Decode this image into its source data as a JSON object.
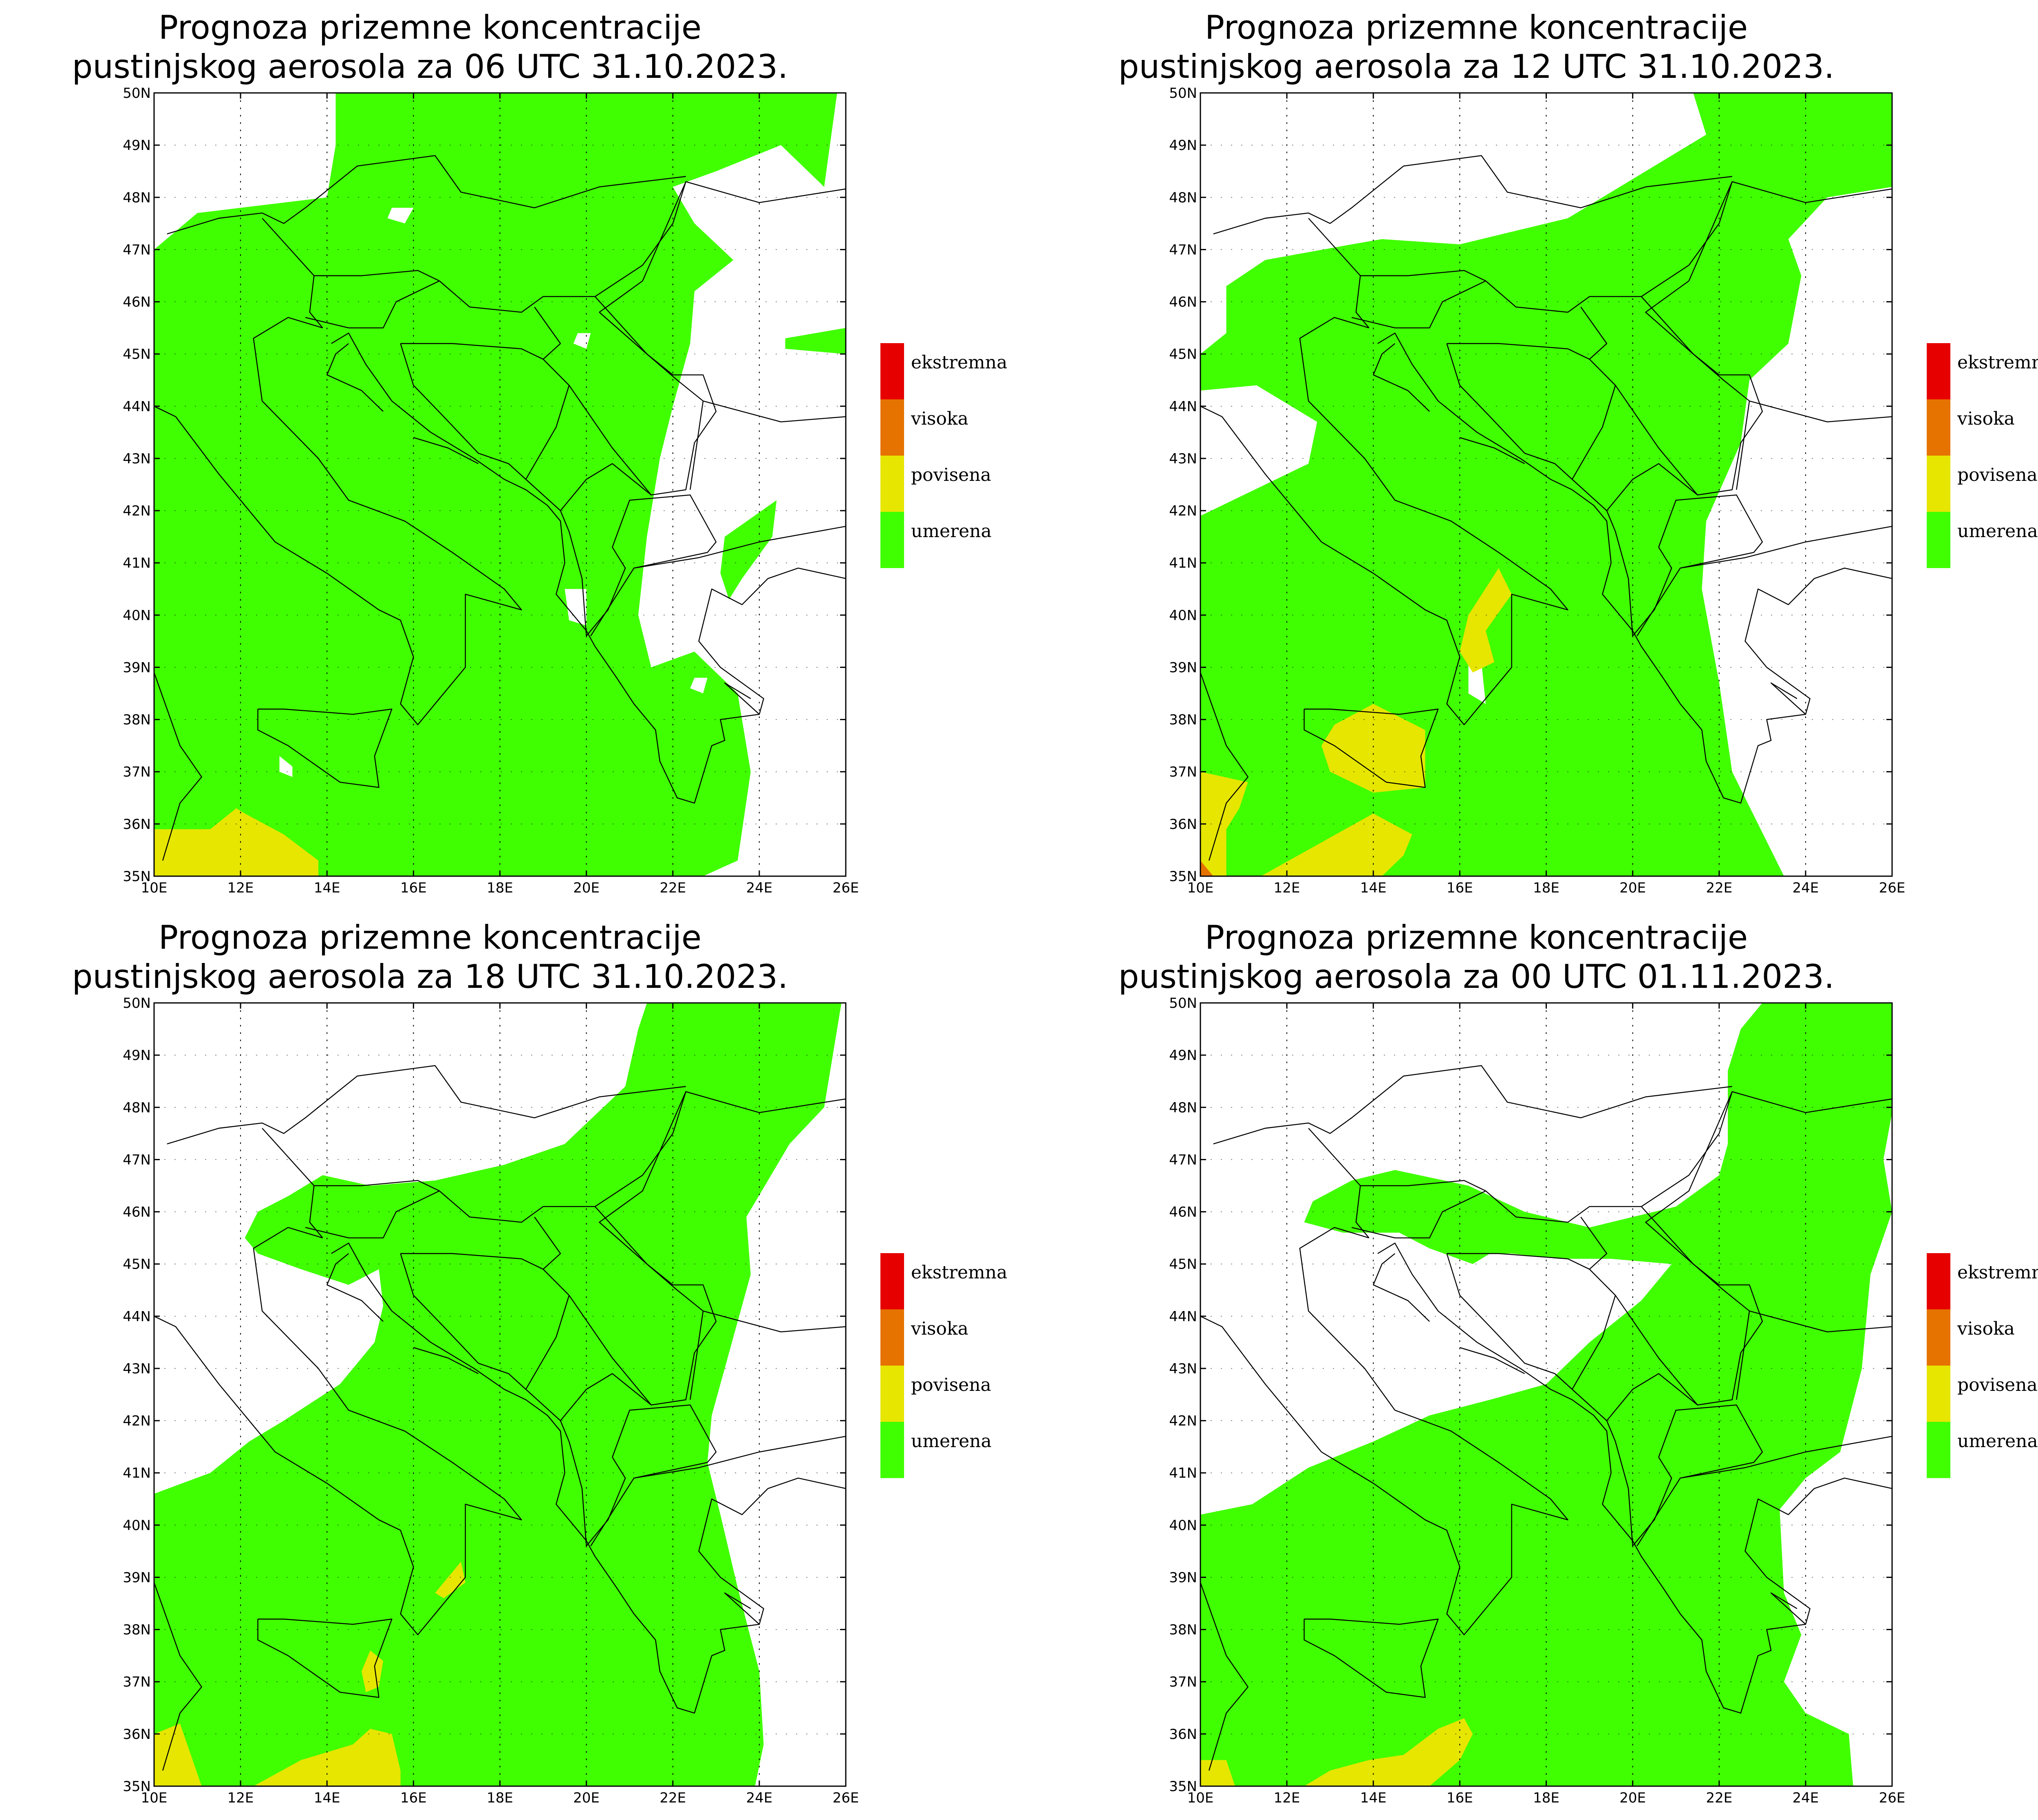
{
  "title_line1": "Prognoza prizemne koncentracije",
  "panels": [
    {
      "title_line2": "pustinjskog aerosola za 06 UTC 31.10.2023."
    },
    {
      "title_line2": "pustinjskog aerosola za 12 UTC 31.10.2023."
    },
    {
      "title_line2": "pustinjskog aerosola za 18 UTC 31.10.2023."
    },
    {
      "title_line2": "pustinjskog aerosola za 00 UTC 01.11.2023."
    }
  ],
  "lat_labels": [
    "50N",
    "49N",
    "48N",
    "47N",
    "46N",
    "45N",
    "44N",
    "43N",
    "42N",
    "41N",
    "40N",
    "39N",
    "38N",
    "37N",
    "36N",
    "35N"
  ],
  "lon_labels": [
    "10E",
    "12E",
    "14E",
    "16E",
    "18E",
    "20E",
    "22E",
    "24E",
    "26E"
  ],
  "legend": [
    {
      "label": "ekstremna",
      "color": "#e60000"
    },
    {
      "label": "visoka",
      "color": "#e67300"
    },
    {
      "label": "povisena",
      "color": "#e6e600"
    },
    {
      "label": "umerena",
      "color": "#40ff00"
    }
  ],
  "colors": {
    "umerena": "#40ff00",
    "povisena": "#e6e600",
    "visoka": "#e67300",
    "border": "#000000"
  }
}
